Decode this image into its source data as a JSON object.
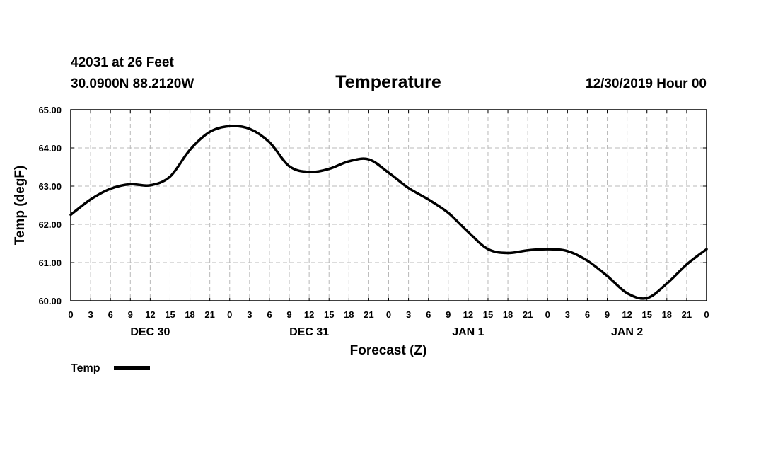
{
  "header": {
    "station": "42031 at 26 Feet",
    "coords": "30.0900N 88.2120W",
    "title": "Temperature",
    "datetime": "12/30/2019 Hour 00"
  },
  "chart_data": {
    "type": "line",
    "title": "Temperature",
    "xlabel": "Forecast (Z)",
    "ylabel": "Temp (degF)",
    "xlim": [
      0,
      96
    ],
    "ylim": [
      60,
      65
    ],
    "grid": true,
    "y_ticks": [
      "60.00",
      "61.00",
      "62.00",
      "63.00",
      "64.00",
      "65.00"
    ],
    "x_tick_labels": [
      "0",
      "3",
      "6",
      "9",
      "12",
      "15",
      "18",
      "21",
      "0",
      "3",
      "6",
      "9",
      "12",
      "15",
      "18",
      "21",
      "0",
      "3",
      "6",
      "9",
      "12",
      "15",
      "18",
      "21",
      "0",
      "3",
      "6",
      "9",
      "12",
      "15",
      "18",
      "21",
      "0"
    ],
    "day_labels": [
      {
        "label": "DEC 30",
        "hour": 12
      },
      {
        "label": "DEC 31",
        "hour": 36
      },
      {
        "label": "JAN 1",
        "hour": 60
      },
      {
        "label": "JAN 2",
        "hour": 84
      }
    ],
    "series": [
      {
        "name": "Temp",
        "color": "#000000",
        "x": [
          0,
          3,
          6,
          9,
          12,
          15,
          18,
          21,
          24,
          27,
          30,
          33,
          36,
          39,
          42,
          45,
          48,
          51,
          54,
          57,
          60,
          63,
          66,
          69,
          72,
          75,
          78,
          81,
          84,
          87,
          90,
          93,
          96
        ],
        "values": [
          62.25,
          62.65,
          62.93,
          63.05,
          63.02,
          63.25,
          63.95,
          64.42,
          64.57,
          64.5,
          64.15,
          63.52,
          63.37,
          63.45,
          63.65,
          63.7,
          63.35,
          62.95,
          62.65,
          62.3,
          61.8,
          61.35,
          61.25,
          61.32,
          61.35,
          61.3,
          61.05,
          60.65,
          60.2,
          60.07,
          60.45,
          60.95,
          61.35
        ]
      }
    ],
    "legend": {
      "position": "bottom-left",
      "label": "Temp"
    }
  }
}
